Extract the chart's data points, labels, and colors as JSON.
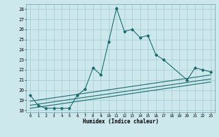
{
  "xlabel": "Humidex (Indice chaleur)",
  "background_color": "#cce8ec",
  "grid_color": "#a8ced4",
  "line_color": "#1a6b6b",
  "xlim": [
    -0.5,
    23.5
  ],
  "ylim": [
    17.8,
    28.5
  ],
  "yticks": [
    18,
    19,
    20,
    21,
    22,
    23,
    24,
    25,
    26,
    27,
    28
  ],
  "xticks": [
    0,
    1,
    2,
    3,
    4,
    5,
    6,
    7,
    8,
    9,
    10,
    11,
    12,
    13,
    14,
    15,
    16,
    17,
    18,
    19,
    20,
    21,
    22,
    23
  ],
  "main_x": [
    0,
    1,
    2,
    3,
    4,
    5,
    6,
    7,
    8,
    9,
    10,
    11,
    12,
    13,
    14,
    15,
    16,
    17,
    20,
    21,
    22,
    23
  ],
  "main_y": [
    19.5,
    18.5,
    18.2,
    18.2,
    18.2,
    18.2,
    19.5,
    20.1,
    22.2,
    21.5,
    24.8,
    28.1,
    25.8,
    26.0,
    25.2,
    25.4,
    23.5,
    23.0,
    21.0,
    22.2,
    22.0,
    21.8
  ],
  "ref_lines": [
    {
      "x": [
        0,
        23
      ],
      "y": [
        18.2,
        20.8
      ]
    },
    {
      "x": [
        0,
        23
      ],
      "y": [
        18.5,
        21.1
      ]
    },
    {
      "x": [
        0,
        23
      ],
      "y": [
        18.9,
        21.5
      ]
    }
  ]
}
